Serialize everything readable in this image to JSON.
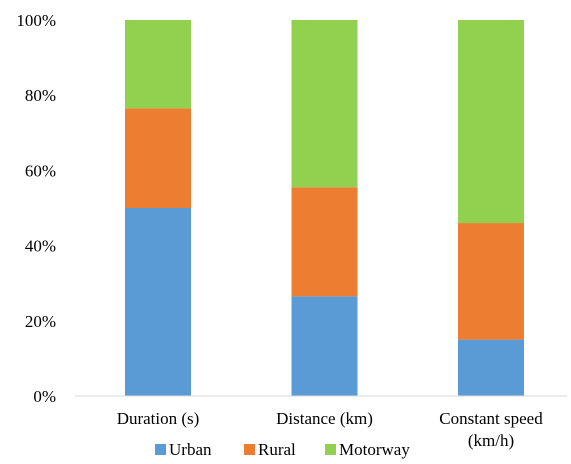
{
  "chart_data": {
    "type": "bar",
    "stacked": true,
    "percent": true,
    "categories": [
      "Duration (s)",
      "Distance (km)",
      "Constant speed (km/h)"
    ],
    "category_lines": [
      [
        "Duration (s)"
      ],
      [
        "Distance (km)"
      ],
      [
        "Constant speed",
        "(km/h)"
      ]
    ],
    "series": [
      {
        "name": "Urban",
        "color": "#5b9bd5",
        "values": [
          50,
          26.5,
          15
        ]
      },
      {
        "name": "Rural",
        "color": "#ed7d31",
        "values": [
          26.5,
          29,
          31
        ]
      },
      {
        "name": "Motorway",
        "color": "#92d050",
        "values": [
          23.5,
          44.5,
          54
        ]
      }
    ],
    "y_ticks": [
      "0%",
      "20%",
      "40%",
      "60%",
      "80%",
      "100%"
    ],
    "ylim": [
      0,
      100
    ],
    "grid": false,
    "legend_position": "bottom"
  }
}
